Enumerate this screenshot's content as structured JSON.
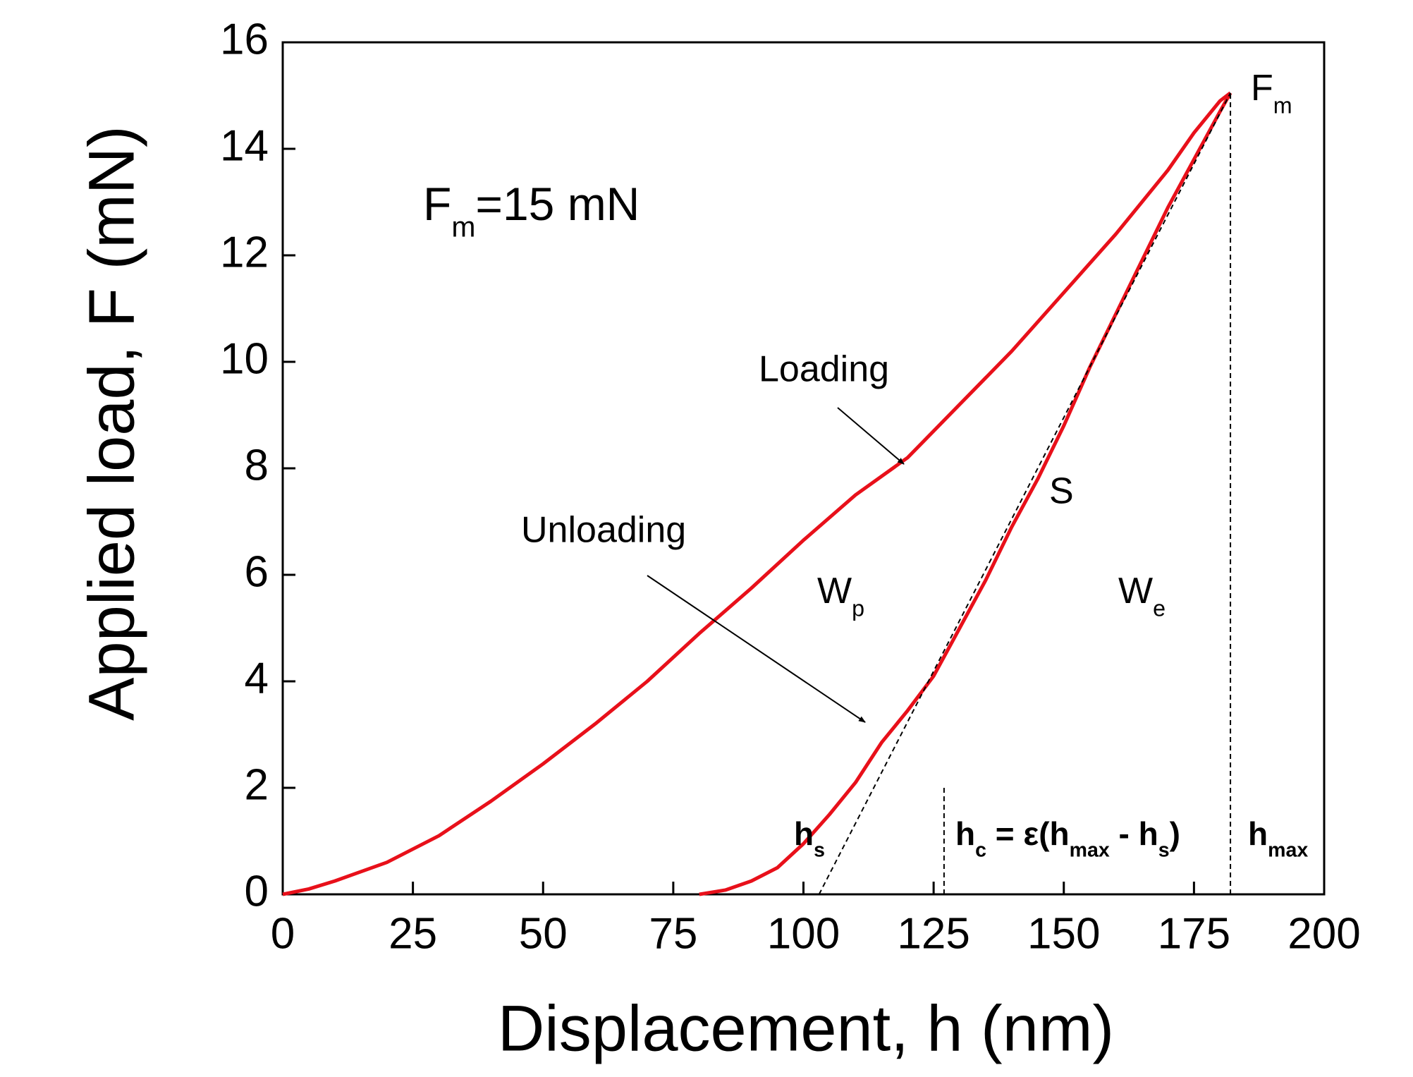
{
  "chart_data": {
    "type": "line",
    "xlabel": "Displacement, h (nm)",
    "ylabel": "Applied  load, F (mN)",
    "xlim": [
      0,
      200
    ],
    "ylim": [
      0,
      16
    ],
    "xticks": [
      0,
      25,
      50,
      75,
      100,
      125,
      150,
      175,
      200
    ],
    "yticks": [
      0,
      2,
      4,
      6,
      8,
      10,
      12,
      14,
      16
    ],
    "series": [
      {
        "name": "Loading",
        "color": "#e8101a",
        "x": [
          0,
          5,
          10,
          20,
          30,
          40,
          50,
          60,
          70,
          80,
          90,
          100,
          110,
          120,
          130,
          140,
          150,
          160,
          170,
          175,
          180,
          182
        ],
        "values": [
          0,
          0.1,
          0.25,
          0.6,
          1.1,
          1.75,
          2.45,
          3.2,
          4.0,
          4.9,
          5.75,
          6.65,
          7.5,
          8.2,
          9.2,
          10.2,
          11.3,
          12.4,
          13.6,
          14.3,
          14.9,
          15.05
        ]
      },
      {
        "name": "Unloading",
        "color": "#e8101a",
        "x": [
          182,
          180,
          175,
          170,
          165,
          160,
          155,
          150,
          145,
          140,
          135,
          130,
          125,
          120,
          115,
          110,
          105,
          100,
          95,
          90,
          85,
          80
        ],
        "values": [
          15.05,
          14.7,
          13.8,
          12.9,
          11.9,
          10.9,
          9.9,
          8.8,
          7.8,
          6.9,
          5.9,
          5.0,
          4.1,
          3.45,
          2.85,
          2.1,
          1.5,
          0.95,
          0.5,
          0.25,
          0.08,
          0
        ]
      },
      {
        "name": "S",
        "color": "#000000",
        "dashed": true,
        "x": [
          103,
          182
        ],
        "values": [
          0,
          15.05
        ]
      }
    ],
    "reference_lines": [
      {
        "x": 127,
        "y": [
          0,
          2
        ]
      },
      {
        "x": 182,
        "y": [
          0,
          15.05
        ]
      }
    ],
    "annotations": [
      {
        "parts": [
          {
            "text": "F"
          },
          {
            "text": "m",
            "sub": true
          },
          {
            "text": "=15 mN"
          }
        ]
      },
      {
        "parts": [
          {
            "text": "F"
          },
          {
            "text": "m",
            "sub": true
          }
        ]
      },
      {
        "parts": [
          {
            "text": "W"
          },
          {
            "text": "p",
            "sub": true
          }
        ]
      },
      {
        "parts": [
          {
            "text": "W"
          },
          {
            "text": "e",
            "sub": true
          }
        ]
      },
      {
        "parts": [
          {
            "text": "h"
          },
          {
            "text": "s",
            "sub": true
          }
        ],
        "bold": true
      },
      {
        "parts": [
          {
            "text": "h"
          },
          {
            "text": "c",
            "sub": true
          },
          {
            "text": " = ε(h"
          },
          {
            "text": "max",
            "sub": true
          },
          {
            "text": " - h"
          },
          {
            "text": "s",
            "sub": true
          },
          {
            "text": ")"
          }
        ],
        "bold": true
      },
      {
        "parts": [
          {
            "text": "h"
          },
          {
            "text": "max",
            "sub": true
          }
        ],
        "bold": true
      }
    ]
  }
}
